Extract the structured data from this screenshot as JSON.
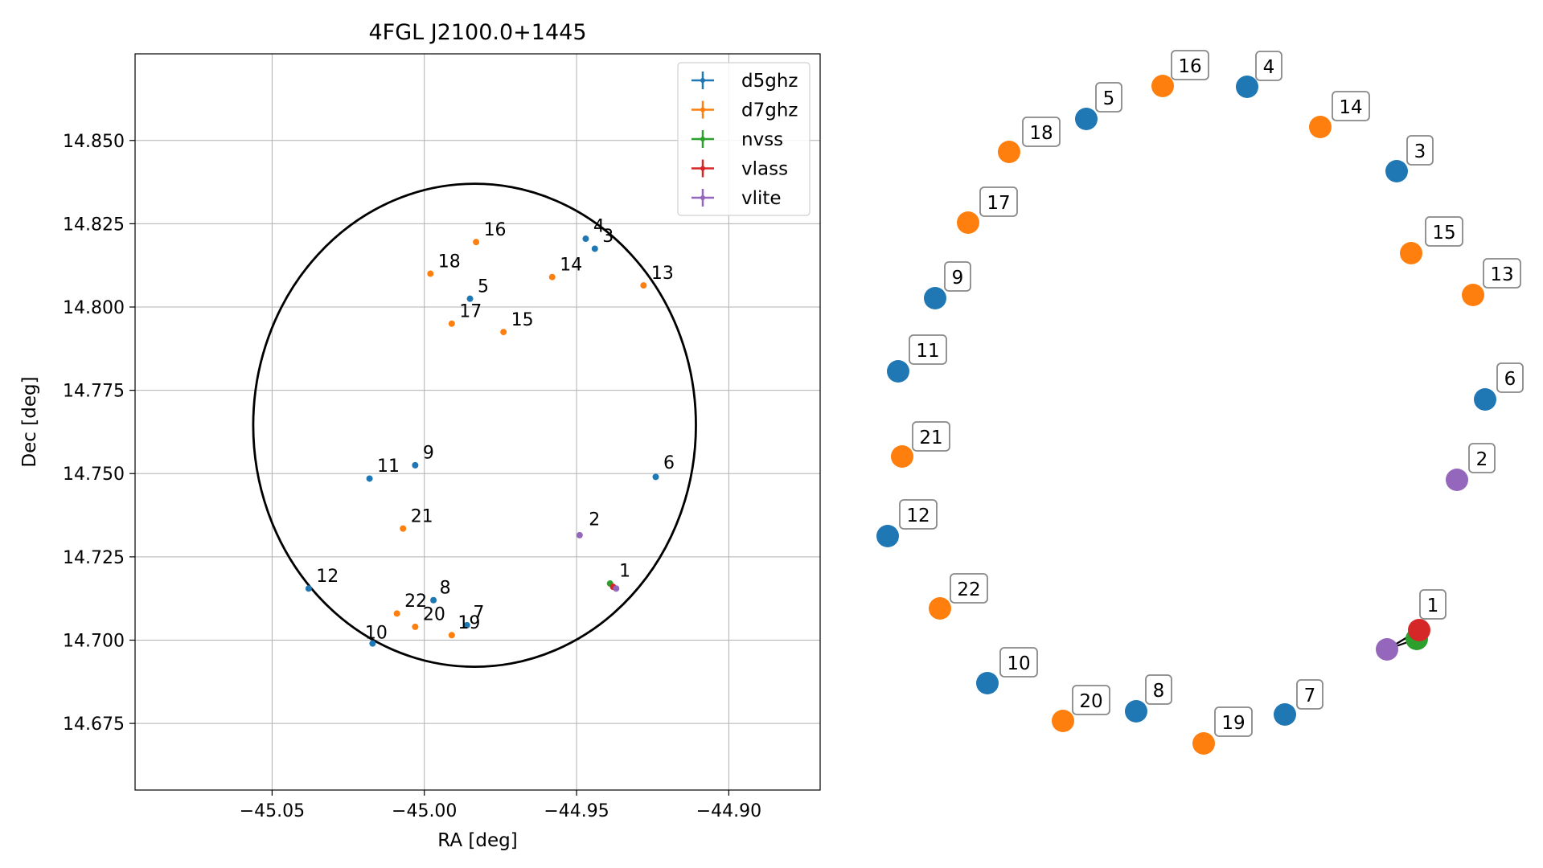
{
  "chart_data": [
    {
      "type": "scatter",
      "title": "4FGL J2100.0+1445",
      "xlabel": "RA [deg]",
      "ylabel": "Dec [deg]",
      "xlim": [
        -45.095,
        -44.87
      ],
      "ylim": [
        14.655,
        14.876
      ],
      "x_ticks": [
        -45.05,
        -45.0,
        -44.95,
        -44.9
      ],
      "x_tick_labels": [
        "−45.05",
        "−45.00",
        "−44.95",
        "−44.90"
      ],
      "y_ticks": [
        14.675,
        14.7,
        14.725,
        14.75,
        14.775,
        14.8,
        14.825,
        14.85
      ],
      "y_tick_labels": [
        "14.675",
        "14.700",
        "14.725",
        "14.750",
        "14.775",
        "14.800",
        "14.825",
        "14.850"
      ],
      "grid": true,
      "legend_position": "top-right",
      "ellipse": {
        "center": [
          -44.9835,
          14.7645
        ],
        "semi_axis_x": 0.0727,
        "semi_axis_y": 0.0725,
        "color": "#000000"
      },
      "series": [
        {
          "name": "d5ghz",
          "color": "#1f77b4",
          "points": [
            {
              "id": "3",
              "x": -44.944,
              "y": 14.8175
            },
            {
              "id": "4",
              "x": -44.947,
              "y": 14.8205
            },
            {
              "id": "5",
              "x": -44.985,
              "y": 14.8025
            },
            {
              "id": "6",
              "x": -44.924,
              "y": 14.749
            },
            {
              "id": "7",
              "x": -44.986,
              "y": 14.7045
            },
            {
              "id": "8",
              "x": -44.997,
              "y": 14.712
            },
            {
              "id": "9",
              "x": -45.003,
              "y": 14.7525
            },
            {
              "id": "10",
              "x": -45.017,
              "y": 14.699
            },
            {
              "id": "11",
              "x": -45.018,
              "y": 14.7485
            },
            {
              "id": "12",
              "x": -45.038,
              "y": 14.7155
            }
          ]
        },
        {
          "name": "d7ghz",
          "color": "#ff7f0e",
          "points": [
            {
              "id": "13",
              "x": -44.928,
              "y": 14.8065
            },
            {
              "id": "14",
              "x": -44.958,
              "y": 14.809
            },
            {
              "id": "15",
              "x": -44.974,
              "y": 14.7925
            },
            {
              "id": "16",
              "x": -44.983,
              "y": 14.8195
            },
            {
              "id": "17",
              "x": -44.991,
              "y": 14.795
            },
            {
              "id": "18",
              "x": -44.998,
              "y": 14.81
            },
            {
              "id": "19",
              "x": -44.991,
              "y": 14.7015
            },
            {
              "id": "20",
              "x": -45.003,
              "y": 14.704
            },
            {
              "id": "21",
              "x": -45.007,
              "y": 14.7335
            },
            {
              "id": "22",
              "x": -45.009,
              "y": 14.708
            }
          ]
        },
        {
          "name": "nvss",
          "color": "#2ca02c",
          "points": [
            {
              "id": "1",
              "x": -44.939,
              "y": 14.717
            }
          ]
        },
        {
          "name": "vlass",
          "color": "#d62728",
          "points": [
            {
              "id": "1",
              "x": -44.938,
              "y": 14.716
            }
          ]
        },
        {
          "name": "vlite",
          "color": "#9467bd",
          "points": [
            {
              "id": "1",
              "x": -44.937,
              "y": 14.7155
            },
            {
              "id": "2",
              "x": -44.949,
              "y": 14.7315
            }
          ]
        }
      ],
      "labels": [
        {
          "text": "1",
          "x": -44.936,
          "y": 14.719
        },
        {
          "text": "2",
          "x": -44.946,
          "y": 14.7345
        },
        {
          "text": "3",
          "x": -44.9415,
          "y": 14.8195
        },
        {
          "text": "4",
          "x": -44.9445,
          "y": 14.8225
        },
        {
          "text": "5",
          "x": -44.9825,
          "y": 14.8045
        },
        {
          "text": "6",
          "x": -44.9215,
          "y": 14.7515
        },
        {
          "text": "7",
          "x": -44.984,
          "y": 14.7065
        },
        {
          "text": "8",
          "x": -44.995,
          "y": 14.714
        },
        {
          "text": "9",
          "x": -45.0005,
          "y": 14.7545
        },
        {
          "text": "10",
          "x": -45.0195,
          "y": 14.7005
        },
        {
          "text": "11",
          "x": -45.0155,
          "y": 14.7505
        },
        {
          "text": "12",
          "x": -45.0355,
          "y": 14.7175
        },
        {
          "text": "13",
          "x": -44.9255,
          "y": 14.8085
        },
        {
          "text": "14",
          "x": -44.9555,
          "y": 14.811
        },
        {
          "text": "15",
          "x": -44.9715,
          "y": 14.7945
        },
        {
          "text": "16",
          "x": -44.9805,
          "y": 14.8215
        },
        {
          "text": "17",
          "x": -44.9885,
          "y": 14.797
        },
        {
          "text": "18",
          "x": -44.9955,
          "y": 14.812
        },
        {
          "text": "19",
          "x": -44.989,
          "y": 14.7035
        },
        {
          "text": "20",
          "x": -45.0005,
          "y": 14.706
        },
        {
          "text": "21",
          "x": -45.0045,
          "y": 14.7355
        },
        {
          "text": "22",
          "x": -45.0065,
          "y": 14.71
        }
      ]
    },
    {
      "type": "network",
      "nodes": [
        {
          "id": "1",
          "series": "nvss",
          "color": "#2ca02c"
        },
        {
          "id": "1",
          "series": "vlass",
          "color": "#d62728"
        },
        {
          "id": "1",
          "series": "vlite",
          "color": "#9467bd"
        },
        {
          "id": "2",
          "series": "vlite",
          "color": "#9467bd"
        },
        {
          "id": "3",
          "series": "d5ghz",
          "color": "#1f77b4"
        },
        {
          "id": "4",
          "series": "d5ghz",
          "color": "#1f77b4"
        },
        {
          "id": "5",
          "series": "d5ghz",
          "color": "#1f77b4"
        },
        {
          "id": "6",
          "series": "d5ghz",
          "color": "#1f77b4"
        },
        {
          "id": "7",
          "series": "d5ghz",
          "color": "#1f77b4"
        },
        {
          "id": "8",
          "series": "d5ghz",
          "color": "#1f77b4"
        },
        {
          "id": "9",
          "series": "d5ghz",
          "color": "#1f77b4"
        },
        {
          "id": "10",
          "series": "d5ghz",
          "color": "#1f77b4"
        },
        {
          "id": "11",
          "series": "d5ghz",
          "color": "#1f77b4"
        },
        {
          "id": "12",
          "series": "d5ghz",
          "color": "#1f77b4"
        },
        {
          "id": "13",
          "series": "d7ghz",
          "color": "#ff7f0e"
        },
        {
          "id": "14",
          "series": "d7ghz",
          "color": "#ff7f0e"
        },
        {
          "id": "15",
          "series": "d7ghz",
          "color": "#ff7f0e"
        },
        {
          "id": "16",
          "series": "d7ghz",
          "color": "#ff7f0e"
        },
        {
          "id": "17",
          "series": "d7ghz",
          "color": "#ff7f0e"
        },
        {
          "id": "18",
          "series": "d7ghz",
          "color": "#ff7f0e"
        },
        {
          "id": "19",
          "series": "d7ghz",
          "color": "#ff7f0e"
        },
        {
          "id": "20",
          "series": "d7ghz",
          "color": "#ff7f0e"
        },
        {
          "id": "21",
          "series": "d7ghz",
          "color": "#ff7f0e"
        },
        {
          "id": "22",
          "series": "d7ghz",
          "color": "#ff7f0e"
        }
      ],
      "edges": [
        {
          "from": "1 (nvss)",
          "to": "1 (vlite)"
        },
        {
          "from": "1 (vlass)",
          "to": "1 (vlite)"
        }
      ]
    }
  ]
}
